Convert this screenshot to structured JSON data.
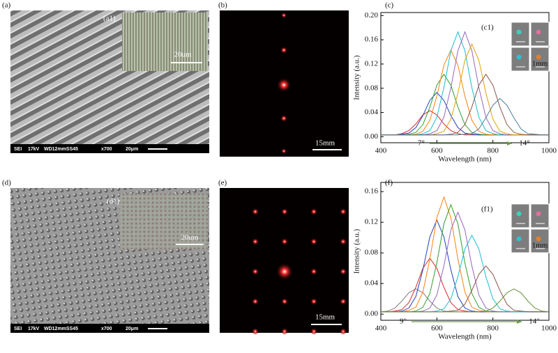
{
  "figures": {
    "a": {
      "label": "(a)",
      "inset_label": "(a1)",
      "inset_scale": "20um",
      "sem_bar": [
        "SEI",
        "17kV",
        "WD12mmSS45",
        "x700",
        "20μm"
      ]
    },
    "b": {
      "label": "(b)",
      "scale": "15mm"
    },
    "d": {
      "label": "(d)",
      "inset_label": "(d1)",
      "inset_scale": "20um",
      "sem_bar": [
        "SEI",
        "17kV",
        "WD12mmSS45",
        "x700",
        "20μm"
      ]
    },
    "e": {
      "label": "(e)",
      "scale": "15mm"
    }
  },
  "chart_data": [
    {
      "type": "line",
      "panel": "(c)",
      "inset_label": "(c1)",
      "inset_scale": "1mm",
      "annotations": [
        "7°",
        "14°"
      ],
      "x_label": "Wavelength (nm)",
      "y_label": "Intensity (a.u.)",
      "xlim": [
        400,
        1000
      ],
      "xticks": [
        400,
        600,
        800,
        1000
      ],
      "ylim": [
        -0.01,
        0.205
      ],
      "yticks": [
        {
          "value": 0,
          "label": "0.00"
        },
        0.04,
        0.08,
        0.12,
        0.16,
        {
          "value": 0.2,
          "label": "0.20"
        }
      ],
      "x": [
        400,
        425,
        450,
        475,
        500,
        525,
        550,
        575,
        600,
        625,
        650,
        675,
        700,
        725,
        750,
        775,
        800,
        825,
        850,
        875,
        900,
        925,
        950,
        975,
        1000
      ],
      "series": [
        {
          "color": "#d62728",
          "values": [
            0.003,
            0.003,
            0.003,
            0.005,
            0.01,
            0.021,
            0.036,
            0.043,
            0.036,
            0.021,
            0.01,
            0.005,
            0.003,
            0.003,
            0.003,
            0.003,
            0.003,
            0.003,
            0.003,
            0.003,
            0.003,
            0.003,
            0.003,
            0.003,
            0.003
          ]
        },
        {
          "color": "#1f3fbf",
          "values": [
            0.003,
            0.003,
            0.003,
            0.004,
            0.006,
            0.015,
            0.035,
            0.06,
            0.073,
            0.06,
            0.035,
            0.015,
            0.006,
            0.004,
            0.003,
            0.003,
            0.003,
            0.003,
            0.003,
            0.003,
            0.003,
            0.003,
            0.003,
            0.003,
            0.003
          ]
        },
        {
          "color": "#2ca02c",
          "values": [
            0.003,
            0.003,
            0.003,
            0.003,
            0.004,
            0.007,
            0.02,
            0.049,
            0.085,
            0.103,
            0.085,
            0.049,
            0.02,
            0.007,
            0.004,
            0.003,
            0.003,
            0.003,
            0.003,
            0.003,
            0.003,
            0.003,
            0.003,
            0.003,
            0.003
          ]
        },
        {
          "color": "#ff7f0e",
          "values": [
            0.003,
            0.003,
            0.003,
            0.003,
            0.003,
            0.004,
            0.009,
            0.027,
            0.067,
            0.118,
            0.143,
            0.118,
            0.067,
            0.027,
            0.009,
            0.004,
            0.003,
            0.003,
            0.003,
            0.003,
            0.003,
            0.003,
            0.003,
            0.003,
            0.003
          ]
        },
        {
          "color": "#17becf",
          "values": [
            0.003,
            0.003,
            0.003,
            0.003,
            0.003,
            0.003,
            0.005,
            0.01,
            0.032,
            0.081,
            0.142,
            0.173,
            0.142,
            0.081,
            0.032,
            0.01,
            0.005,
            0.003,
            0.003,
            0.003,
            0.003,
            0.003,
            0.003,
            0.003,
            0.003
          ]
        },
        {
          "color": "#9467bd",
          "values": [
            0.003,
            0.003,
            0.003,
            0.003,
            0.003,
            0.003,
            0.003,
            0.005,
            0.01,
            0.032,
            0.081,
            0.142,
            0.173,
            0.142,
            0.081,
            0.032,
            0.01,
            0.005,
            0.003,
            0.003,
            0.003,
            0.003,
            0.003,
            0.003,
            0.003
          ]
        },
        {
          "color": "#e6a000",
          "values": [
            0.003,
            0.003,
            0.003,
            0.003,
            0.003,
            0.003,
            0.003,
            0.003,
            0.005,
            0.009,
            0.029,
            0.072,
            0.126,
            0.153,
            0.126,
            0.072,
            0.029,
            0.009,
            0.005,
            0.003,
            0.003,
            0.003,
            0.003,
            0.003,
            0.003
          ]
        },
        {
          "color": "#8c564b",
          "values": [
            0.003,
            0.003,
            0.003,
            0.003,
            0.003,
            0.003,
            0.003,
            0.003,
            0.003,
            0.003,
            0.004,
            0.007,
            0.02,
            0.049,
            0.085,
            0.103,
            0.085,
            0.049,
            0.02,
            0.007,
            0.004,
            0.003,
            0.003,
            0.003,
            0.003
          ]
        },
        {
          "color": "#4a7f9a",
          "values": [
            0.003,
            0.003,
            0.003,
            0.003,
            0.003,
            0.003,
            0.003,
            0.003,
            0.003,
            0.003,
            0.003,
            0.003,
            0.004,
            0.005,
            0.013,
            0.031,
            0.052,
            0.063,
            0.052,
            0.031,
            0.013,
            0.005,
            0.004,
            0.003,
            0.003
          ]
        }
      ]
    },
    {
      "type": "line",
      "panel": "(f)",
      "inset_label": "(f1)",
      "inset_scale": "1mm",
      "annotations": [
        "9°",
        "14°"
      ],
      "x_label": "Wavelength (nm)",
      "y_label": "Intensity (a.u.)",
      "xlim": [
        400,
        1000
      ],
      "xticks": [
        400,
        600,
        800,
        1000
      ],
      "ylim": [
        -0.008,
        0.172
      ],
      "yticks": [
        {
          "value": 0,
          "label": "0.00"
        },
        0.04,
        0.08,
        0.12,
        0.16
      ],
      "x": [
        400,
        425,
        450,
        475,
        500,
        525,
        550,
        575,
        600,
        625,
        650,
        675,
        700,
        725,
        750,
        775,
        800,
        825,
        850,
        875,
        900,
        925,
        950,
        975,
        1000
      ],
      "series": [
        {
          "color": "#7f7f7f",
          "values": [
            0.003,
            0.004,
            0.008,
            0.017,
            0.028,
            0.033,
            0.028,
            0.017,
            0.008,
            0.004,
            0.003,
            0.003,
            0.003,
            0.003,
            0.003,
            0.003,
            0.003,
            0.003,
            0.003,
            0.003,
            0.003,
            0.003,
            0.003,
            0.003,
            0.003
          ]
        },
        {
          "color": "#d62728",
          "values": [
            0.003,
            0.003,
            0.004,
            0.006,
            0.015,
            0.035,
            0.06,
            0.073,
            0.06,
            0.035,
            0.015,
            0.006,
            0.004,
            0.003,
            0.003,
            0.003,
            0.003,
            0.003,
            0.003,
            0.003,
            0.003,
            0.003,
            0.003,
            0.003,
            0.003
          ]
        },
        {
          "color": "#1f3fbf",
          "values": [
            0.003,
            0.003,
            0.003,
            0.004,
            0.008,
            0.023,
            0.058,
            0.101,
            0.123,
            0.101,
            0.058,
            0.023,
            0.008,
            0.004,
            0.003,
            0.003,
            0.003,
            0.003,
            0.003,
            0.003,
            0.003,
            0.003,
            0.003,
            0.003,
            0.003
          ]
        },
        {
          "color": "#ff7f0e",
          "values": [
            0.003,
            0.003,
            0.003,
            0.003,
            0.005,
            0.009,
            0.029,
            0.072,
            0.126,
            0.153,
            0.126,
            0.072,
            0.029,
            0.009,
            0.005,
            0.003,
            0.003,
            0.003,
            0.003,
            0.003,
            0.003,
            0.003,
            0.003,
            0.003,
            0.003
          ]
        },
        {
          "color": "#2ca02c",
          "values": [
            0.003,
            0.003,
            0.003,
            0.003,
            0.003,
            0.004,
            0.009,
            0.027,
            0.067,
            0.118,
            0.143,
            0.118,
            0.067,
            0.027,
            0.009,
            0.004,
            0.003,
            0.003,
            0.003,
            0.003,
            0.003,
            0.003,
            0.003,
            0.003,
            0.003
          ]
        },
        {
          "color": "#9467bd",
          "values": [
            0.003,
            0.003,
            0.003,
            0.003,
            0.003,
            0.003,
            0.004,
            0.008,
            0.025,
            0.063,
            0.11,
            0.133,
            0.11,
            0.063,
            0.025,
            0.008,
            0.004,
            0.003,
            0.003,
            0.003,
            0.003,
            0.003,
            0.003,
            0.003,
            0.003
          ]
        },
        {
          "color": "#17becf",
          "values": [
            0.003,
            0.003,
            0.003,
            0.003,
            0.003,
            0.003,
            0.003,
            0.003,
            0.004,
            0.007,
            0.02,
            0.049,
            0.085,
            0.103,
            0.085,
            0.049,
            0.02,
            0.007,
            0.004,
            0.003,
            0.003,
            0.003,
            0.003,
            0.003,
            0.003
          ]
        },
        {
          "color": "#8c564b",
          "values": [
            0.003,
            0.003,
            0.003,
            0.003,
            0.003,
            0.003,
            0.003,
            0.003,
            0.003,
            0.003,
            0.004,
            0.005,
            0.013,
            0.031,
            0.052,
            0.063,
            0.052,
            0.031,
            0.013,
            0.005,
            0.004,
            0.003,
            0.003,
            0.003,
            0.003
          ]
        },
        {
          "color": "#6a8f3a",
          "values": [
            0.003,
            0.003,
            0.003,
            0.003,
            0.003,
            0.003,
            0.003,
            0.003,
            0.003,
            0.003,
            0.003,
            0.003,
            0.003,
            0.003,
            0.003,
            0.004,
            0.008,
            0.017,
            0.028,
            0.033,
            0.028,
            0.017,
            0.008,
            0.004,
            0.003
          ]
        }
      ]
    }
  ]
}
